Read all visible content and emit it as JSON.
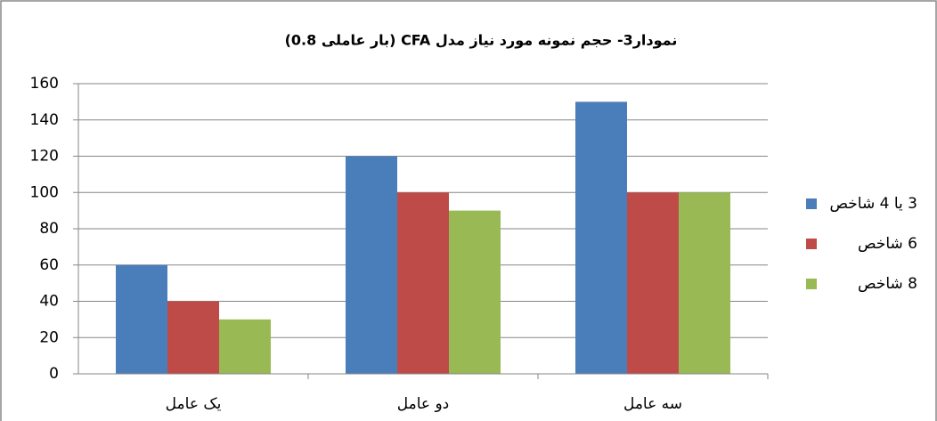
{
  "chart_data": {
    "type": "bar",
    "title": "نمودار3- حجم نمونه مورد نیاز مدل CFA (بار عاملی 0.8)",
    "categories": [
      "یک عامل",
      "دو عامل",
      "سه عامل"
    ],
    "series": [
      {
        "name": "3 یا 4 شاخص",
        "color": "#4a7ebb",
        "values": [
          60,
          120,
          150
        ]
      },
      {
        "name": "6 شاخص",
        "color": "#be4b48",
        "values": [
          40,
          100,
          100
        ]
      },
      {
        "name": "8 شاخص",
        "color": "#98b954",
        "values": [
          30,
          90,
          100
        ]
      }
    ],
    "ylim": [
      0,
      160
    ],
    "yticks": [
      0,
      20,
      40,
      60,
      80,
      100,
      120,
      140,
      160
    ],
    "grid": true,
    "legend": "right"
  }
}
